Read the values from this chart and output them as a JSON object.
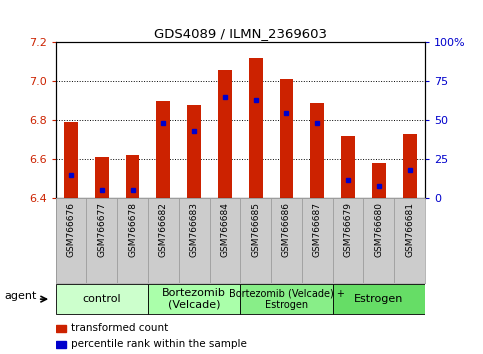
{
  "title": "GDS4089 / ILMN_2369603",
  "samples": [
    "GSM766676",
    "GSM766677",
    "GSM766678",
    "GSM766682",
    "GSM766683",
    "GSM766684",
    "GSM766685",
    "GSM766686",
    "GSM766687",
    "GSM766679",
    "GSM766680",
    "GSM766681"
  ],
  "bar_values": [
    6.79,
    6.61,
    6.62,
    6.9,
    6.88,
    7.06,
    7.12,
    7.01,
    6.89,
    6.72,
    6.58,
    6.73
  ],
  "bar_base": 6.4,
  "percentile_values": [
    15,
    5,
    5,
    48,
    43,
    65,
    63,
    55,
    48,
    12,
    8,
    18
  ],
  "percentile_scale_max": 100,
  "ylim": [
    6.4,
    7.2
  ],
  "yticks": [
    6.4,
    6.6,
    6.8,
    7.0,
    7.2
  ],
  "right_yticks": [
    0,
    25,
    50,
    75,
    100
  ],
  "right_yticklabels": [
    "0",
    "25",
    "50",
    "75",
    "100%"
  ],
  "groups": [
    {
      "label": "control",
      "start": 0,
      "end": 3,
      "color": "#ccffcc",
      "fontsize": 8
    },
    {
      "label": "Bortezomib\n(Velcade)",
      "start": 3,
      "end": 6,
      "color": "#aaffaa",
      "fontsize": 8
    },
    {
      "label": "Bortezomib (Velcade) +\nEstrogen",
      "start": 6,
      "end": 9,
      "color": "#88ee88",
      "fontsize": 7
    },
    {
      "label": "Estrogen",
      "start": 9,
      "end": 12,
      "color": "#66dd66",
      "fontsize": 8
    }
  ],
  "bar_color": "#cc2200",
  "dot_color": "#0000cc",
  "bar_width": 0.45,
  "grid_color": "#000000",
  "tick_area_color": "#cccccc",
  "legend_items": [
    "transformed count",
    "percentile rank within the sample"
  ],
  "legend_colors": [
    "#cc2200",
    "#0000cc"
  ],
  "agent_label": "agent"
}
